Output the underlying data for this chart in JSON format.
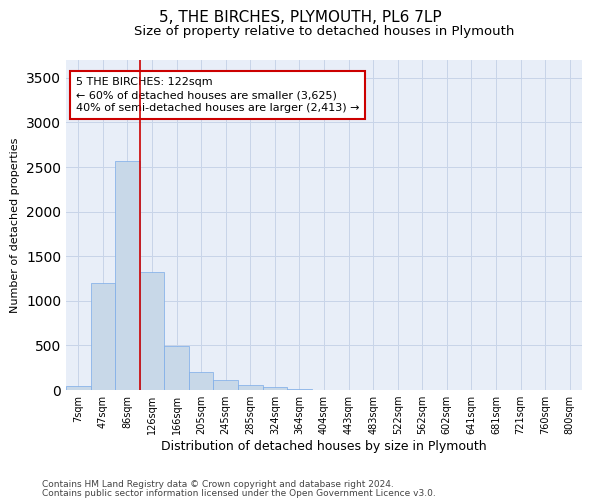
{
  "title": "5, THE BIRCHES, PLYMOUTH, PL6 7LP",
  "subtitle": "Size of property relative to detached houses in Plymouth",
  "xlabel": "Distribution of detached houses by size in Plymouth",
  "ylabel": "Number of detached properties",
  "bar_color": "#c8d8e8",
  "bar_edge_color": "#7aabe8",
  "highlight_line_color": "#cc0000",
  "highlight_bin_index": 3,
  "categories": [
    "7sqm",
    "47sqm",
    "86sqm",
    "126sqm",
    "166sqm",
    "205sqm",
    "245sqm",
    "285sqm",
    "324sqm",
    "364sqm",
    "404sqm",
    "443sqm",
    "483sqm",
    "522sqm",
    "562sqm",
    "602sqm",
    "641sqm",
    "681sqm",
    "721sqm",
    "760sqm",
    "800sqm"
  ],
  "values": [
    50,
    1200,
    2570,
    1320,
    490,
    200,
    110,
    55,
    35,
    10,
    5,
    0,
    0,
    0,
    0,
    0,
    0,
    0,
    0,
    0,
    0
  ],
  "ylim": [
    0,
    3700
  ],
  "yticks": [
    0,
    500,
    1000,
    1500,
    2000,
    2500,
    3000,
    3500
  ],
  "annotation_line1": "5 THE BIRCHES: 122sqm",
  "annotation_line2": "← 60% of detached houses are smaller (3,625)",
  "annotation_line3": "40% of semi-detached houses are larger (2,413) →",
  "footer_line1": "Contains HM Land Registry data © Crown copyright and database right 2024.",
  "footer_line2": "Contains public sector information licensed under the Open Government Licence v3.0.",
  "background_color": "#ffffff",
  "plot_bg_color": "#e8eef8",
  "grid_color": "#c8d4e8",
  "title_fontsize": 11,
  "subtitle_fontsize": 9.5,
  "xlabel_fontsize": 9,
  "ylabel_fontsize": 8,
  "tick_fontsize": 7,
  "annotation_fontsize": 8,
  "footer_fontsize": 6.5
}
